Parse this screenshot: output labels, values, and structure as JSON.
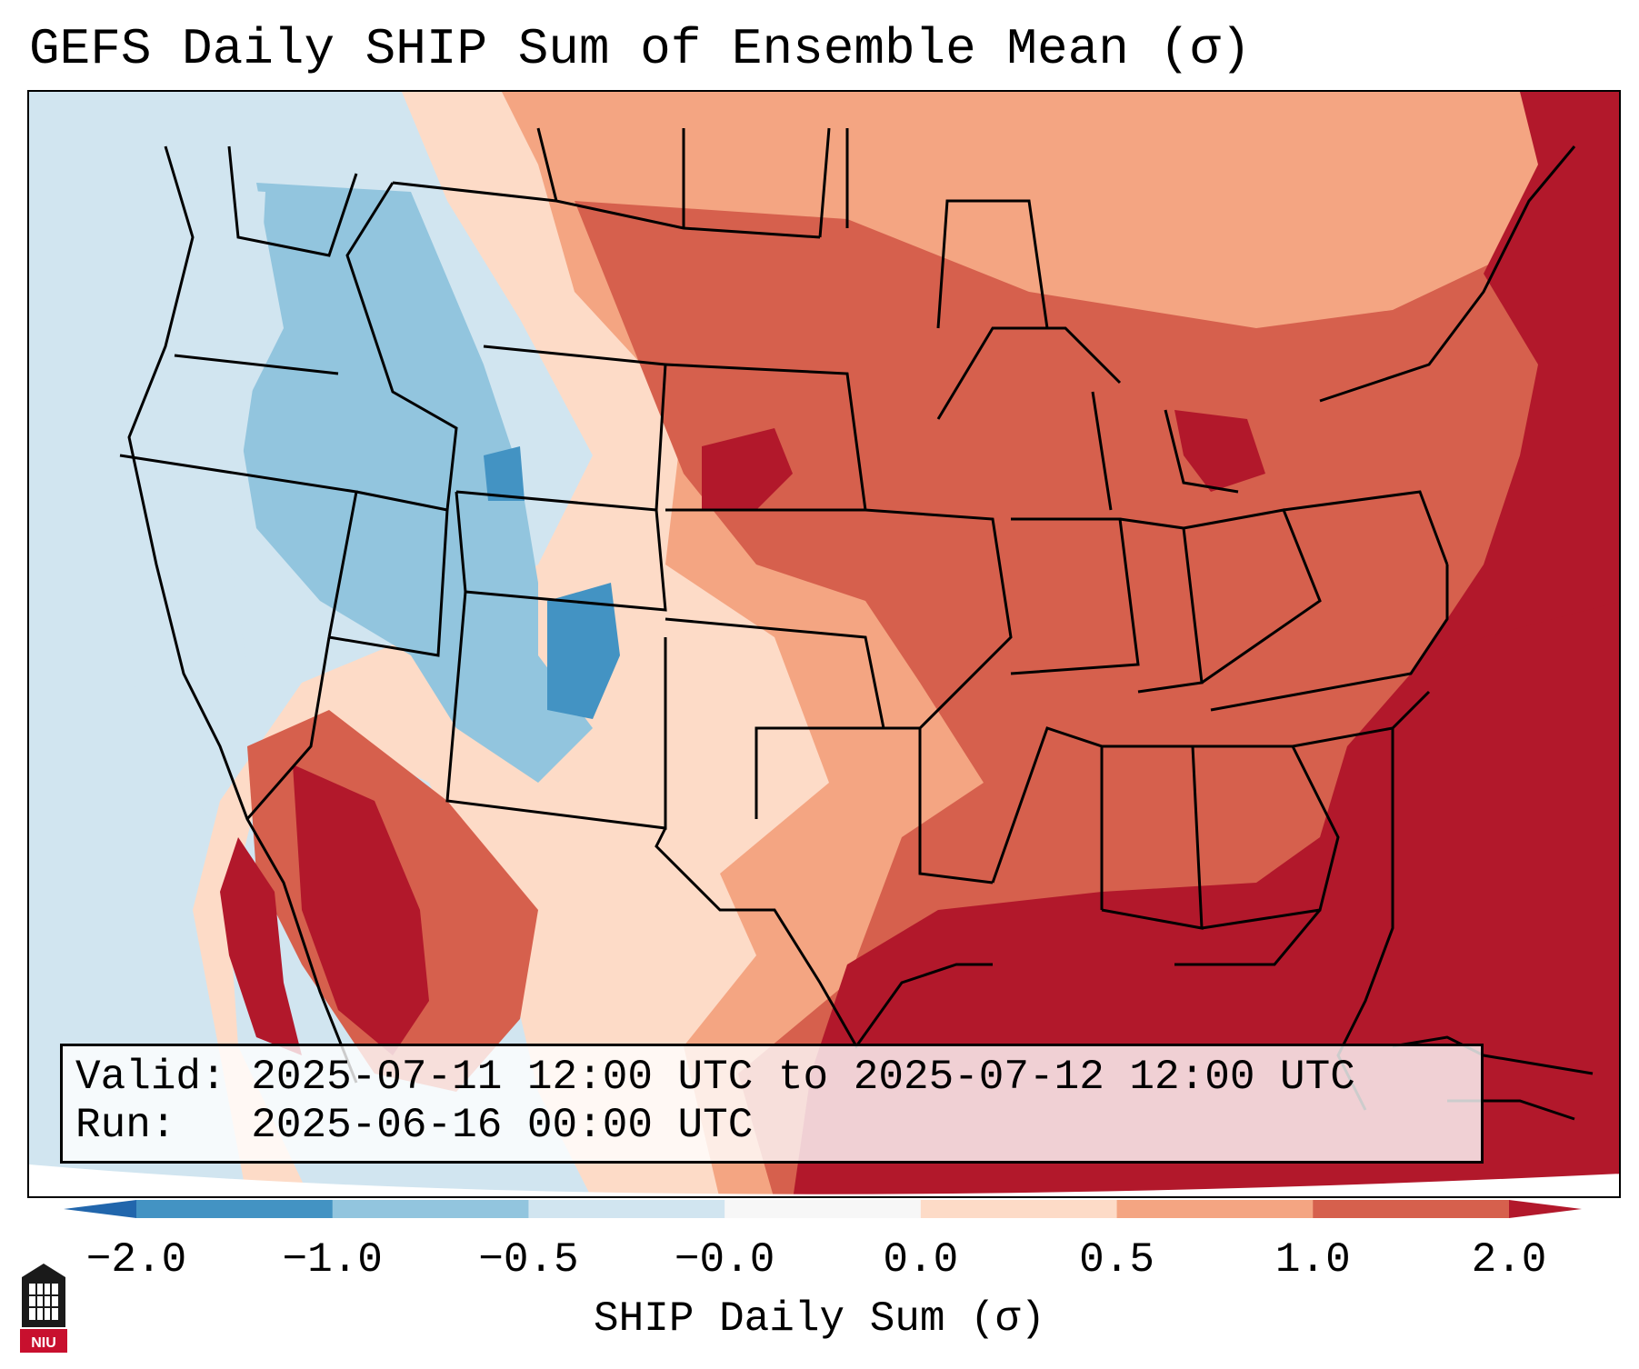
{
  "title": "GEFS Daily SHIP Sum of Ensemble Mean (σ)",
  "info": {
    "valid_label": "Valid:",
    "valid_value": "2025-07-11 12:00 UTC to 2025-07-12 12:00 UTC",
    "run_label": "Run:",
    "run_value": "2025-06-16 00:00 UTC"
  },
  "colorbar": {
    "label": "SHIP Daily Sum (σ)",
    "ticks": [
      "−2.0",
      "−1.0",
      "−0.5",
      "−0.0",
      "0.0",
      "0.5",
      "1.0",
      "2.0"
    ],
    "colors": [
      "#2166ac",
      "#4393c3",
      "#92c5de",
      "#d1e5f0",
      "#f7f7f7",
      "#fddbc7",
      "#f4a582",
      "#d6604d",
      "#b2182b"
    ]
  },
  "logo": {
    "text": "NIU"
  }
}
